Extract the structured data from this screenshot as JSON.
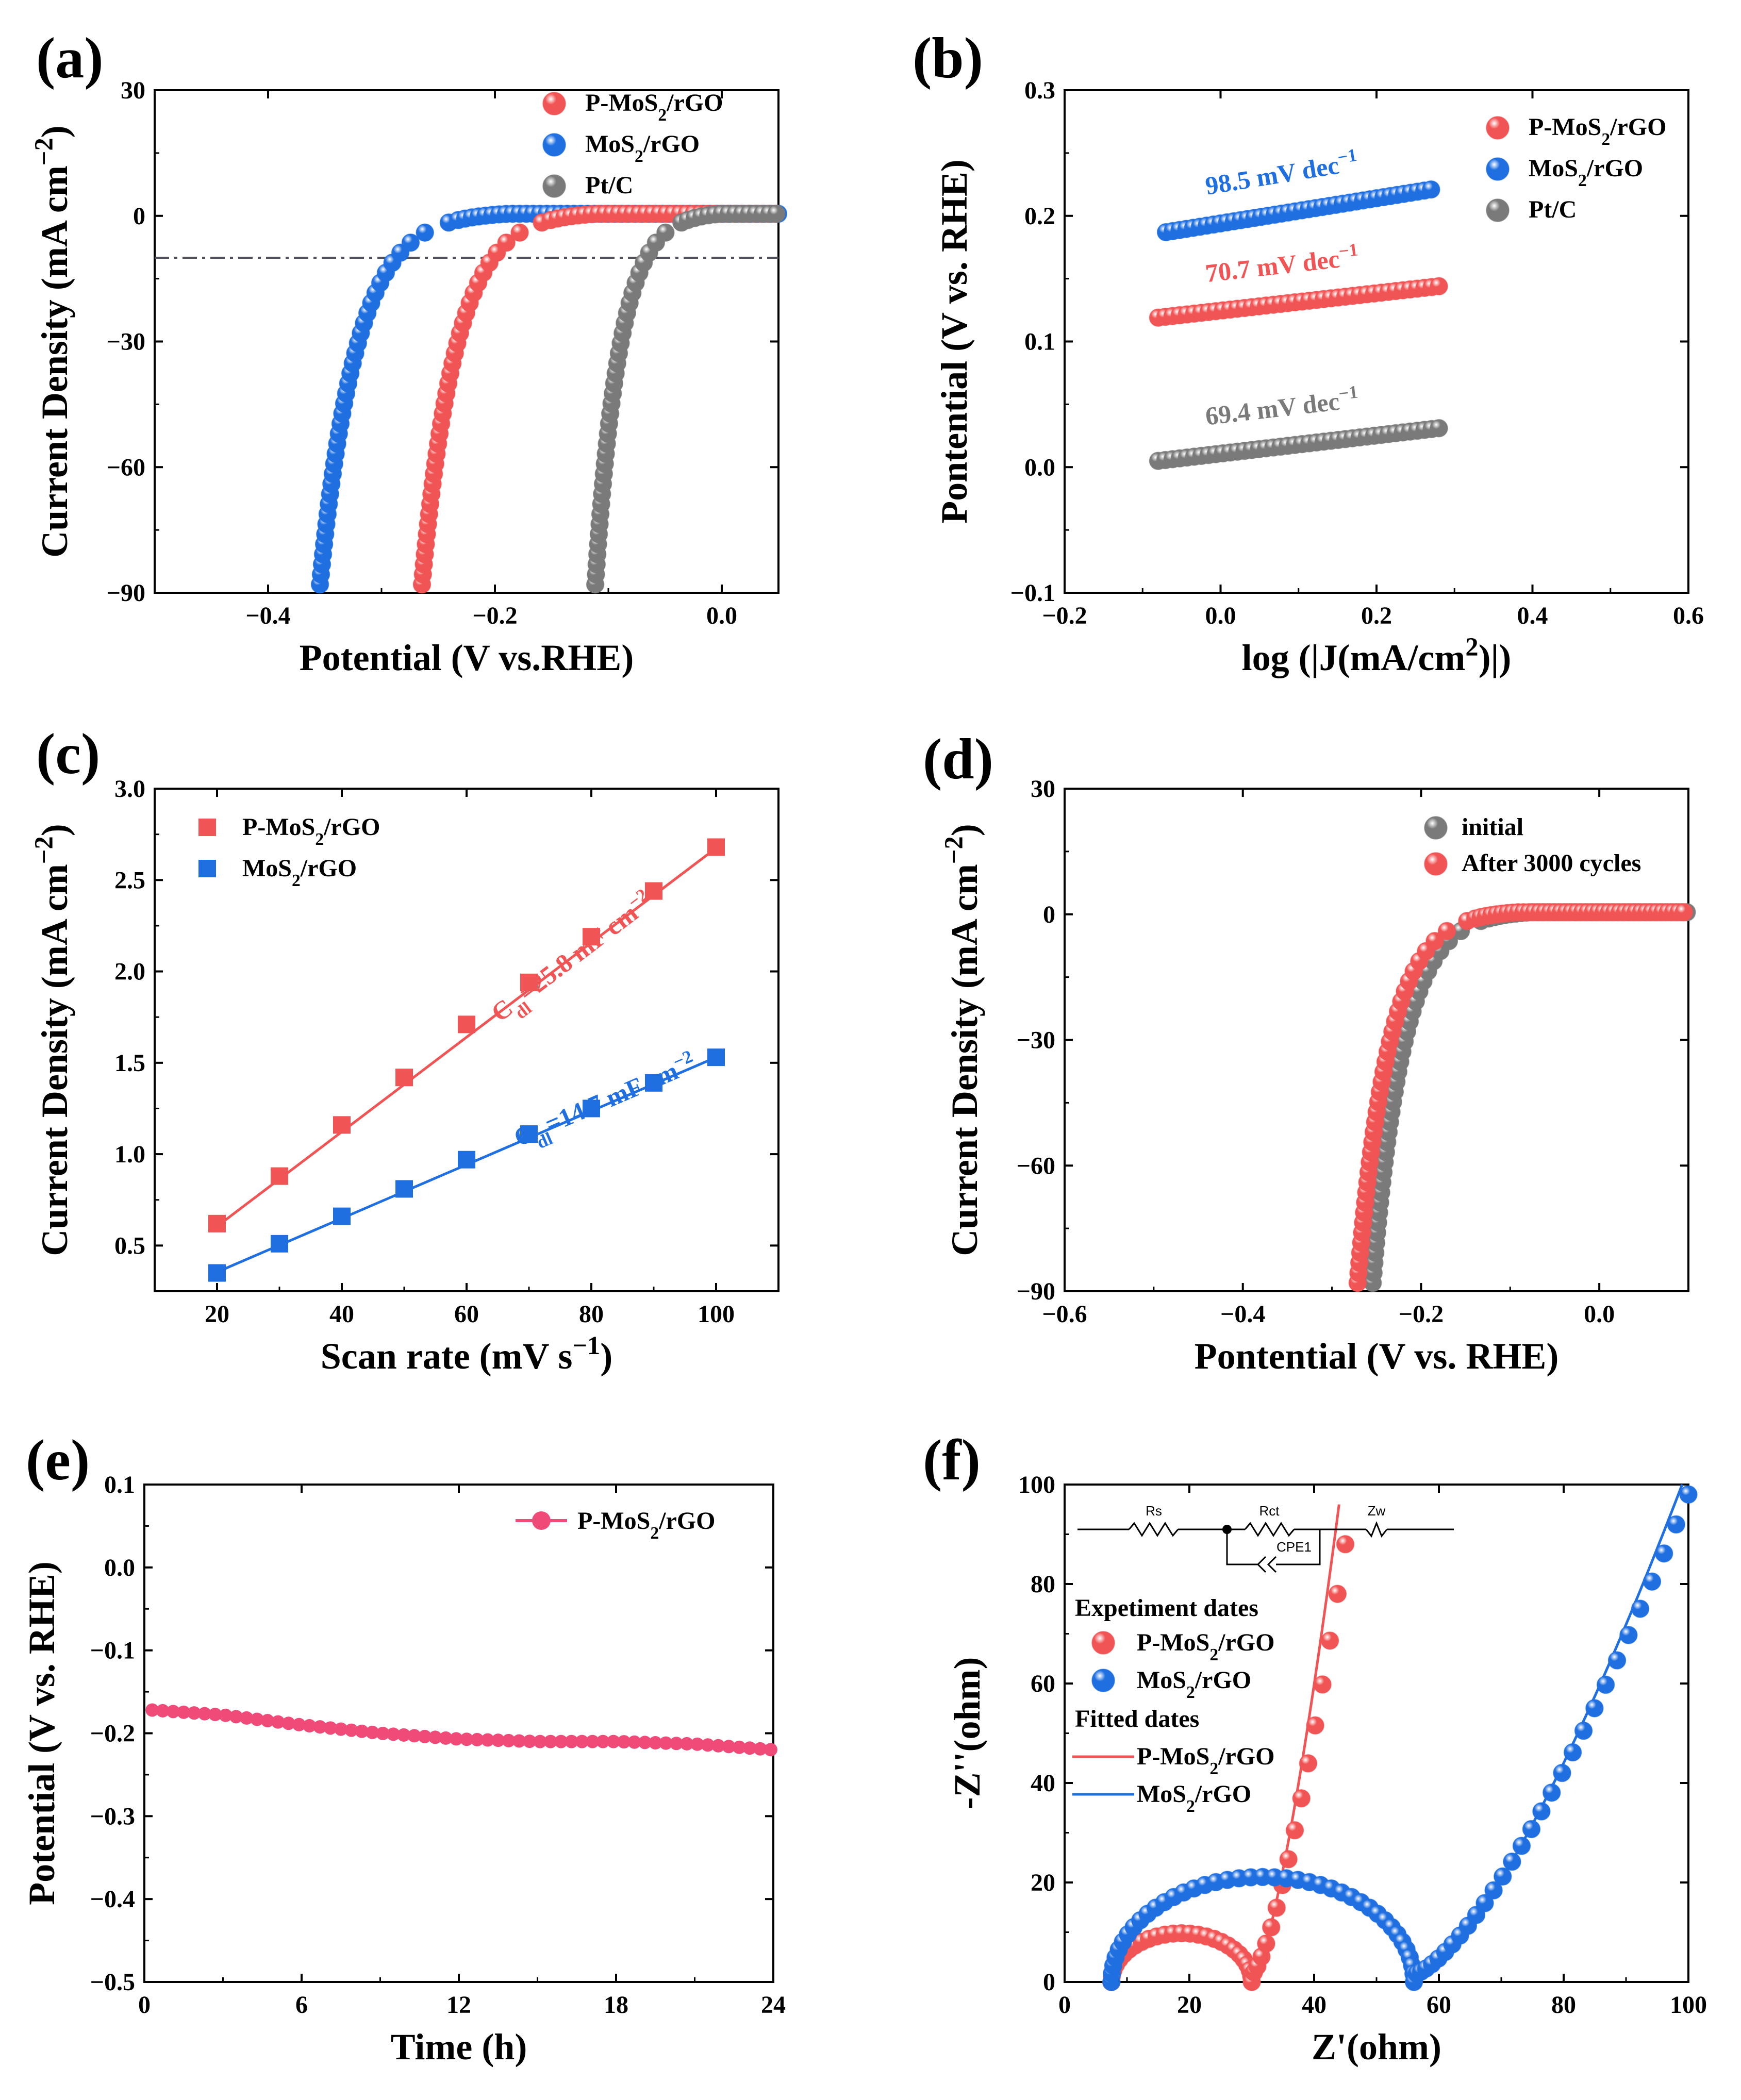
{
  "colors": {
    "red": "#f05454",
    "blue": "#1f6fe0",
    "gray": "#7a7a7a",
    "pink": "#f04a78",
    "ref_line": "#50505a"
  },
  "chart_data": [
    {
      "id": "a",
      "panel_label": "(a)",
      "type": "scatter",
      "xlabel": "Potential (V vs.RHE)",
      "ylabel_main": "Current Density (mA cm",
      "ylabel_sup": "−2",
      "ylabel_end": ")",
      "xlim": [
        -0.5,
        0.05
      ],
      "ylim": [
        -90,
        30
      ],
      "xticks": [
        {
          "value": -0.4,
          "label": "−0.4"
        },
        {
          "value": -0.2,
          "label": "−0.2"
        },
        {
          "value": 0.0,
          "label": "0.0"
        }
      ],
      "yticks": [
        {
          "value": 30,
          "label": "30"
        },
        {
          "value": 0,
          "label": "0"
        },
        {
          "value": -30,
          "label": "−30"
        },
        {
          "value": -60,
          "label": "−60"
        },
        {
          "value": -90,
          "label": "−90"
        }
      ],
      "reference_line_y": -10,
      "legend": [
        {
          "main": "P-MoS",
          "sub": "2",
          "rest": "/rGO",
          "color_key": "red"
        },
        {
          "main": "MoS",
          "sub": "2",
          "rest": "/rGO",
          "color_key": "blue"
        },
        {
          "main": "Pt/C",
          "sub": "",
          "rest": "",
          "color_key": "gray"
        }
      ],
      "series": [
        {
          "name": "P-MoS2/rGO",
          "color_key": "red",
          "onset": -0.13,
          "x90": -0.265
        },
        {
          "name": "MoS2/rGO",
          "color_key": "blue",
          "onset": -0.21,
          "x90": -0.355
        },
        {
          "name": "Pt/C",
          "color_key": "gray",
          "onset": -0.015,
          "x90": -0.112
        }
      ]
    },
    {
      "id": "b",
      "panel_label": "(b)",
      "type": "scatter",
      "xlabel_main": "log (|J(mA/cm",
      "xlabel_sup": "2",
      "xlabel_end": ")|)",
      "ylabel": "Pontential (V vs. RHE)",
      "xlim": [
        -0.2,
        0.6
      ],
      "ylim": [
        -0.1,
        0.3
      ],
      "xticks": [
        {
          "value": -0.2,
          "label": "−0.2"
        },
        {
          "value": 0.0,
          "label": "0.0"
        },
        {
          "value": 0.2,
          "label": "0.2"
        },
        {
          "value": 0.4,
          "label": "0.4"
        },
        {
          "value": 0.6,
          "label": "0.6"
        }
      ],
      "yticks": [
        {
          "value": 0.3,
          "label": "0.3"
        },
        {
          "value": 0.2,
          "label": "0.2"
        },
        {
          "value": 0.1,
          "label": "0.1"
        },
        {
          "value": 0.0,
          "label": "0.0"
        },
        {
          "value": -0.1,
          "label": "−0.1"
        }
      ],
      "legend": [
        {
          "main": "P-MoS",
          "sub": "2",
          "rest": "/rGO",
          "color_key": "red"
        },
        {
          "main": "MoS",
          "sub": "2",
          "rest": "/rGO",
          "color_key": "blue"
        },
        {
          "main": "Pt/C",
          "sub": "",
          "rest": "",
          "color_key": "gray"
        }
      ],
      "series": [
        {
          "name": "MoS2/rGO",
          "color_key": "blue",
          "x": [
            -0.07,
            0.27
          ],
          "y": [
            0.187,
            0.221
          ],
          "slope_label": "98.5 mV dec",
          "slope_sup": "−1"
        },
        {
          "name": "P-MoS2/rGO",
          "color_key": "red",
          "x": [
            -0.08,
            0.28
          ],
          "y": [
            0.119,
            0.144
          ],
          "slope_label": "70.7 mV dec",
          "slope_sup": "−1"
        },
        {
          "name": "Pt/C",
          "color_key": "gray",
          "x": [
            -0.08,
            0.28
          ],
          "y": [
            0.005,
            0.031
          ],
          "slope_label": "69.4 mV dec",
          "slope_sup": "−1"
        }
      ]
    },
    {
      "id": "c",
      "panel_label": "(c)",
      "type": "scatter",
      "xlabel_main": "Scan rate (mV s",
      "xlabel_sup": "−1",
      "xlabel_end": ")",
      "ylabel_main": "Current Density (mA cm",
      "ylabel_sup": "−2",
      "ylabel_end": ")",
      "xlim": [
        10,
        110
      ],
      "ylim": [
        0.25,
        3.0
      ],
      "xticks": [
        {
          "value": 20,
          "label": "20"
        },
        {
          "value": 40,
          "label": "40"
        },
        {
          "value": 60,
          "label": "60"
        },
        {
          "value": 80,
          "label": "80"
        },
        {
          "value": 100,
          "label": "100"
        }
      ],
      "yticks": [
        {
          "value": 3.0,
          "label": "3.0"
        },
        {
          "value": 2.5,
          "label": "2.5"
        },
        {
          "value": 2.0,
          "label": "2.0"
        },
        {
          "value": 1.5,
          "label": "1.5"
        },
        {
          "value": 1.0,
          "label": "1.0"
        },
        {
          "value": 0.5,
          "label": "0.5"
        }
      ],
      "legend": [
        {
          "main": "P-MoS",
          "sub": "2",
          "rest": "/rGO",
          "color_key": "red"
        },
        {
          "main": "MoS",
          "sub": "2",
          "rest": "/rGO",
          "color_key": "blue"
        }
      ],
      "series": [
        {
          "name": "P-MoS2/rGO",
          "color_key": "red",
          "x": [
            20,
            30,
            40,
            50,
            60,
            70,
            80,
            90,
            100
          ],
          "y": [
            0.62,
            0.88,
            1.16,
            1.42,
            1.71,
            1.94,
            2.19,
            2.44,
            2.68
          ],
          "fit": [
            0.605,
            2.675
          ],
          "cdl": "=25.8 mF cm",
          "cdl_sup": "−2"
        },
        {
          "name": "MoS2/rGO",
          "color_key": "blue",
          "x": [
            20,
            30,
            40,
            50,
            60,
            70,
            80,
            90,
            100
          ],
          "y": [
            0.35,
            0.51,
            0.66,
            0.81,
            0.97,
            1.11,
            1.25,
            1.39,
            1.53
          ],
          "fit": [
            0.355,
            1.53
          ],
          "cdl": "=14.7 mF cm",
          "cdl_sup": "−2"
        }
      ],
      "cdl_prefix": "C",
      "cdl_sub": "dl"
    },
    {
      "id": "d",
      "panel_label": "(d)",
      "type": "scatter",
      "xlabel": "Pontential (V vs. RHE)",
      "ylabel_main": "Current Density (mA cm",
      "ylabel_sup": "−2",
      "ylabel_end": ")",
      "xlim": [
        -0.6,
        0.1
      ],
      "ylim": [
        -90,
        30
      ],
      "xticks": [
        {
          "value": -0.6,
          "label": "−0.6"
        },
        {
          "value": -0.4,
          "label": "−0.4"
        },
        {
          "value": -0.2,
          "label": "−0.2"
        },
        {
          "value": 0.0,
          "label": "0.0"
        }
      ],
      "yticks": [
        {
          "value": 30,
          "label": "30"
        },
        {
          "value": 0,
          "label": "0"
        },
        {
          "value": -30,
          "label": "−30"
        },
        {
          "value": -60,
          "label": "−60"
        },
        {
          "value": -90,
          "label": "−90"
        }
      ],
      "legend": [
        {
          "main": "initial",
          "sub": "",
          "rest": "",
          "color_key": "gray"
        },
        {
          "main": "After 3000 cycles",
          "sub": "",
          "rest": "",
          "color_key": "red"
        }
      ],
      "series": [
        {
          "name": "initial",
          "color_key": "gray",
          "onset": -0.1,
          "x90": -0.255
        },
        {
          "name": "After 3000 cycles",
          "color_key": "red",
          "onset": -0.115,
          "x90": -0.272
        }
      ]
    },
    {
      "id": "e",
      "panel_label": "(e)",
      "type": "line",
      "xlabel": "Time (h)",
      "ylabel": "Potential (V vs. RHE)",
      "xlim": [
        0,
        24
      ],
      "ylim": [
        -0.5,
        0.1
      ],
      "xticks": [
        {
          "value": 0,
          "label": "0"
        },
        {
          "value": 6,
          "label": "6"
        },
        {
          "value": 12,
          "label": "12"
        },
        {
          "value": 18,
          "label": "18"
        },
        {
          "value": 24,
          "label": "24"
        }
      ],
      "yticks": [
        {
          "value": 0.1,
          "label": "0.1"
        },
        {
          "value": 0.0,
          "label": "0.0"
        },
        {
          "value": -0.1,
          "label": "−0.1"
        },
        {
          "value": -0.2,
          "label": "−0.2"
        },
        {
          "value": -0.3,
          "label": "−0.3"
        },
        {
          "value": -0.4,
          "label": "−0.4"
        },
        {
          "value": -0.5,
          "label": "−0.5"
        }
      ],
      "legend": [
        {
          "main": "P-MoS",
          "sub": "2",
          "rest": "/rGO",
          "color_key": "pink"
        }
      ],
      "series": [
        {
          "name": "P-MoS2/rGO",
          "color_key": "pink",
          "x": [
            0.3,
            3,
            6,
            9,
            12,
            15,
            18,
            21,
            24
          ],
          "y": [
            -0.172,
            -0.178,
            -0.19,
            -0.2,
            -0.207,
            -0.21,
            -0.21,
            -0.213,
            -0.22
          ]
        }
      ]
    },
    {
      "id": "f",
      "panel_label": "(f)",
      "type": "scatter",
      "xlabel": "Z'(ohm)",
      "ylabel": "-Z''(ohm)",
      "xlim": [
        0,
        100
      ],
      "ylim": [
        0,
        100
      ],
      "xticks": [
        {
          "value": 0,
          "label": "0"
        },
        {
          "value": 20,
          "label": "20"
        },
        {
          "value": 40,
          "label": "40"
        },
        {
          "value": 60,
          "label": "60"
        },
        {
          "value": 80,
          "label": "80"
        },
        {
          "value": 100,
          "label": "100"
        }
      ],
      "yticks": [
        {
          "value": 0,
          "label": "0"
        },
        {
          "value": 20,
          "label": "20"
        },
        {
          "value": 40,
          "label": "40"
        },
        {
          "value": 60,
          "label": "60"
        },
        {
          "value": 80,
          "label": "80"
        },
        {
          "value": 100,
          "label": "100"
        }
      ],
      "legend_headers": [
        "Expetiment dates",
        "Fitted dates"
      ],
      "legend": [
        {
          "main": "P-MoS",
          "sub": "2",
          "rest": "/rGO",
          "color_key": "red",
          "kind": "marker"
        },
        {
          "main": "MoS",
          "sub": "2",
          "rest": "/rGO",
          "color_key": "blue",
          "kind": "marker"
        },
        {
          "main": "P-MoS",
          "sub": "2",
          "rest": "/rGO",
          "color_key": "red",
          "kind": "line"
        },
        {
          "main": "MoS",
          "sub": "2",
          "rest": "/rGO",
          "color_key": "blue",
          "kind": "line"
        }
      ],
      "circuit_labels": [
        "Rs",
        "Rct",
        "CPE1",
        "Zw"
      ],
      "series": [
        {
          "name": "P-MoS2/rGO",
          "color_key": "red",
          "rs": 7.5,
          "rct": 22.5,
          "tail_end": [
            45,
            88
          ],
          "fit_end": [
            44,
            96
          ]
        },
        {
          "name": "MoS2/rGO",
          "color_key": "blue",
          "rs": 7.5,
          "rct": 48.5,
          "tail_end": [
            100,
            98
          ],
          "fit_end": [
            99,
            100
          ]
        }
      ]
    }
  ]
}
